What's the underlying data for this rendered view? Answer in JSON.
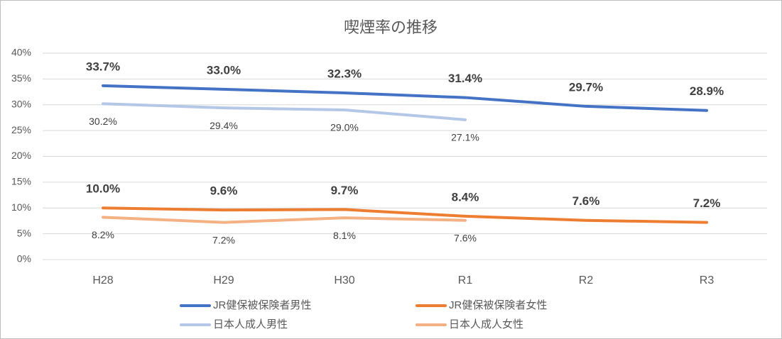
{
  "chart_data": {
    "type": "line",
    "title": "喫煙率の推移",
    "categories": [
      "H28",
      "H29",
      "H30",
      "R1",
      "R2",
      "R3"
    ],
    "series": [
      {
        "name": "JR健保被保険者男性",
        "color": "#4472c4",
        "values": [
          33.7,
          33.0,
          32.3,
          31.4,
          29.7,
          28.9
        ],
        "value_labels": [
          "33.7%",
          "33.0%",
          "32.3%",
          "31.4%",
          "29.7%",
          "28.9%"
        ]
      },
      {
        "name": "JR健保被保険者女性",
        "color": "#ed7d31",
        "values": [
          10.0,
          9.6,
          9.7,
          8.4,
          7.6,
          7.2
        ],
        "value_labels": [
          "10.0%",
          "9.6%",
          "9.7%",
          "8.4%",
          "7.6%",
          "7.2%"
        ]
      },
      {
        "name": "日本人成人男性",
        "color": "#b4c7e7",
        "values": [
          30.2,
          29.4,
          29.0,
          27.1,
          null,
          null
        ],
        "value_labels": [
          "30.2%",
          "29.4%",
          "29.0%",
          "27.1%",
          null,
          null
        ]
      },
      {
        "name": "日本人成人女性",
        "color": "#f4b183",
        "values": [
          8.2,
          7.2,
          8.1,
          7.6,
          null,
          null
        ],
        "value_labels": [
          "8.2%",
          "7.2%",
          "8.1%",
          "7.6%",
          null,
          null
        ]
      }
    ],
    "ylim": [
      0,
      40
    ],
    "yticks": [
      {
        "value": 0,
        "label": "0%"
      },
      {
        "value": 5,
        "label": "5%"
      },
      {
        "value": 10,
        "label": "10%"
      },
      {
        "value": 15,
        "label": "15%"
      },
      {
        "value": 20,
        "label": "20%"
      },
      {
        "value": 25,
        "label": "25%"
      },
      {
        "value": 30,
        "label": "30%"
      },
      {
        "value": 35,
        "label": "35%"
      },
      {
        "value": 40,
        "label": "40%"
      }
    ],
    "grid": true
  }
}
